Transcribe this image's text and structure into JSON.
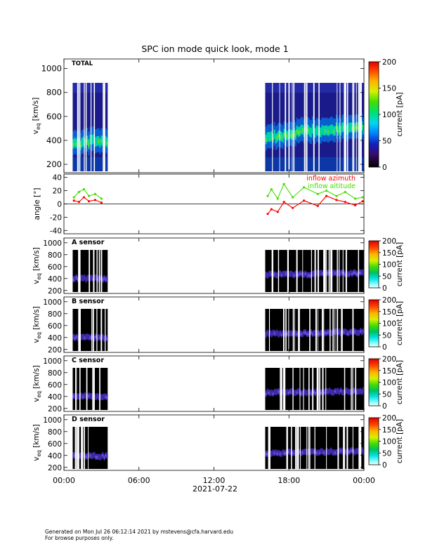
{
  "chart_data": {
    "title": "SPC ion mode quick look, mode 1",
    "x_axis": {
      "ticks": [
        "00:00",
        "06:00",
        "12:00",
        "18:00",
        "00:00"
      ],
      "tick_hours": [
        0,
        6,
        12,
        18,
        24
      ],
      "date_label": "2021-07-22",
      "range_hours": [
        0,
        24
      ]
    },
    "data_coverage_hours": [
      [
        0.7,
        3.5
      ],
      [
        16.1,
        24
      ]
    ],
    "panels": [
      {
        "type": "heatmap",
        "label": "TOTAL",
        "ylabel": "v",
        "ylabel_sub": "eq",
        "ylabel_units": "[km/s]",
        "ylim": [
          130,
          1080
        ],
        "yticks": [
          200,
          400,
          600,
          800,
          1000
        ],
        "colorbar": {
          "label": "current [pA]",
          "ticks": [
            0,
            50,
            100,
            150,
            200
          ],
          "range": [
            0,
            200
          ],
          "scheme": "rainbow_dark"
        },
        "coverage_vmax": 880,
        "beam": [
          {
            "t": 0.7,
            "v": 380
          },
          {
            "t": 1.5,
            "v": 370
          },
          {
            "t": 2.3,
            "v": 390
          },
          {
            "t": 3.5,
            "v": 380
          },
          {
            "t": 16.1,
            "v": 420
          },
          {
            "t": 17.5,
            "v": 430
          },
          {
            "t": 19,
            "v": 470
          },
          {
            "t": 20.5,
            "v": 480
          },
          {
            "t": 22,
            "v": 490
          },
          {
            "t": 24,
            "v": 500
          }
        ]
      },
      {
        "type": "line",
        "ylabel": "angle [°]",
        "ylim": [
          -45,
          45
        ],
        "yticks": [
          -40,
          -20,
          0,
          20,
          40
        ],
        "zero_line": true,
        "legend": [
          "inflow azimuth",
          "inflow altitude"
        ],
        "series": [
          {
            "name": "inflow azimuth",
            "color": "#ff0000",
            "points": [
              {
                "t": 0.8,
                "v": 5
              },
              {
                "t": 1.2,
                "v": 3
              },
              {
                "t": 1.6,
                "v": 10
              },
              {
                "t": 2.0,
                "v": 4
              },
              {
                "t": 2.5,
                "v": 6
              },
              {
                "t": 3.0,
                "v": 2
              },
              {
                "t": 16.3,
                "v": -15
              },
              {
                "t": 16.6,
                "v": -8
              },
              {
                "t": 17.1,
                "v": -12
              },
              {
                "t": 17.6,
                "v": 3
              },
              {
                "t": 18.3,
                "v": -6
              },
              {
                "t": 19.2,
                "v": 5
              },
              {
                "t": 20.3,
                "v": -3
              },
              {
                "t": 21.0,
                "v": 12
              },
              {
                "t": 21.8,
                "v": 6
              },
              {
                "t": 22.5,
                "v": 3
              },
              {
                "t": 23.3,
                "v": -2
              },
              {
                "t": 23.9,
                "v": 4
              }
            ]
          },
          {
            "name": "inflow altitude",
            "color": "#44dd00",
            "points": [
              {
                "t": 0.8,
                "v": 10
              },
              {
                "t": 1.2,
                "v": 18
              },
              {
                "t": 1.6,
                "v": 22
              },
              {
                "t": 2.0,
                "v": 12
              },
              {
                "t": 2.5,
                "v": 15
              },
              {
                "t": 3.0,
                "v": 8
              },
              {
                "t": 16.3,
                "v": 12
              },
              {
                "t": 16.6,
                "v": 22
              },
              {
                "t": 17.1,
                "v": 8
              },
              {
                "t": 17.6,
                "v": 30
              },
              {
                "t": 18.3,
                "v": 10
              },
              {
                "t": 19.2,
                "v": 25
              },
              {
                "t": 20.3,
                "v": 15
              },
              {
                "t": 21.0,
                "v": 20
              },
              {
                "t": 21.8,
                "v": 12
              },
              {
                "t": 22.5,
                "v": 18
              },
              {
                "t": 23.3,
                "v": 8
              },
              {
                "t": 23.9,
                "v": 10
              }
            ]
          }
        ]
      },
      {
        "type": "heatmap",
        "label": "A sensor",
        "ylabel": "v",
        "ylabel_sub": "eq",
        "ylabel_units": "[km/s]",
        "ylim": [
          150,
          1080
        ],
        "yticks": [
          200,
          400,
          600,
          800,
          1000
        ],
        "colorbar": {
          "label": "current [pA]",
          "ticks": [
            0,
            50,
            100,
            150,
            200
          ],
          "range": [
            0,
            200
          ],
          "scheme": "rainbow_white"
        },
        "coverage_vmax": 880,
        "beam": [
          {
            "t": 0.7,
            "v": 400
          },
          {
            "t": 3.5,
            "v": 390
          },
          {
            "t": 16.1,
            "v": 460
          },
          {
            "t": 20,
            "v": 470
          },
          {
            "t": 24,
            "v": 490
          }
        ]
      },
      {
        "type": "heatmap",
        "label": "B sensor",
        "ylabel": "v",
        "ylabel_sub": "eq",
        "ylabel_units": "[km/s]",
        "ylim": [
          150,
          1080
        ],
        "yticks": [
          200,
          400,
          600,
          800,
          1000
        ],
        "colorbar": {
          "label": "current [pA]",
          "ticks": [
            0,
            50,
            100,
            150,
            200
          ],
          "range": [
            0,
            200
          ],
          "scheme": "rainbow_white"
        },
        "coverage_vmax": 880,
        "beam": [
          {
            "t": 0.7,
            "v": 400
          },
          {
            "t": 3.5,
            "v": 390
          },
          {
            "t": 16.1,
            "v": 460
          },
          {
            "t": 20,
            "v": 470
          },
          {
            "t": 24,
            "v": 490
          }
        ]
      },
      {
        "type": "heatmap",
        "label": "C sensor",
        "ylabel": "v",
        "ylabel_sub": "eq",
        "ylabel_units": "[km/s]",
        "ylim": [
          150,
          1080
        ],
        "yticks": [
          200,
          400,
          600,
          800,
          1000
        ],
        "colorbar": {
          "label": "current [pA]",
          "ticks": [
            0,
            50,
            100,
            150,
            200
          ],
          "range": [
            0,
            200
          ],
          "scheme": "rainbow_white"
        },
        "coverage_vmax": 880,
        "beam": [
          {
            "t": 0.7,
            "v": 400
          },
          {
            "t": 3.5,
            "v": 390
          },
          {
            "t": 16.1,
            "v": 460
          },
          {
            "t": 20,
            "v": 470
          },
          {
            "t": 24,
            "v": 490
          }
        ]
      },
      {
        "type": "heatmap",
        "label": "D sensor",
        "ylabel": "v",
        "ylabel_sub": "eq",
        "ylabel_units": "[km/s]",
        "ylim": [
          150,
          1080
        ],
        "yticks": [
          200,
          400,
          600,
          800,
          1000
        ],
        "colorbar": {
          "label": "current [pA]",
          "ticks": [
            0,
            50,
            100,
            150,
            200
          ],
          "range": [
            0,
            200
          ],
          "scheme": "rainbow_white"
        },
        "coverage_vmax": 880,
        "beam": [
          {
            "t": 0.7,
            "v": 390
          },
          {
            "t": 3.5,
            "v": 380
          },
          {
            "t": 16.1,
            "v": 430
          },
          {
            "t": 20,
            "v": 450
          },
          {
            "t": 24,
            "v": 470
          }
        ]
      }
    ]
  },
  "footer": {
    "line1": "Generated on Mon Jul 26 06:12:14 2021 by mstevens@cfa.harvard.edu",
    "line2": "For browse purposes only."
  }
}
